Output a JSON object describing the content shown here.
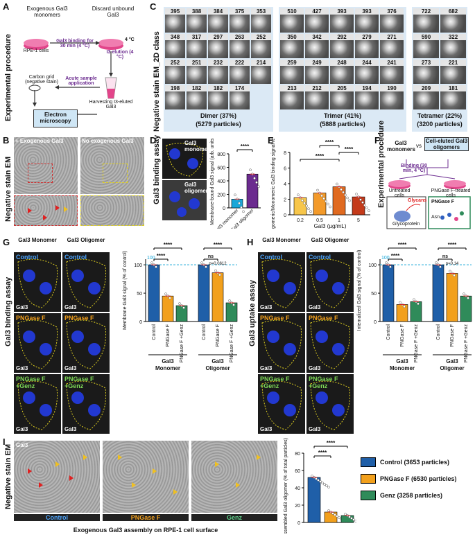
{
  "panelA": {
    "letter": "A",
    "side_label": "Experimental procedure",
    "exogenous": "Exogenous Gal3 monomers",
    "discard": "Discard unbound Gal3",
    "cells": "RPE-1 cells",
    "binding": "Gal3 binding for 30 min (4 °C)",
    "temp": "4 °C",
    "elution": "I3 elution (4 °C)",
    "carbon": "Carbon grid (negative stain)",
    "acute": "Acute sample application",
    "harvest": "Harvesting I3-eluted Gal3",
    "em_box": "Electron microscopy"
  },
  "panelB": {
    "letter": "B",
    "side_label": "Negative stain EM",
    "left_title": "+ Exogenous Gal3",
    "right_title": "No exogenous Gal3"
  },
  "panelC": {
    "letter": "C",
    "side_label": "Negative stain EM_2D class",
    "dimer_counts": [
      "395",
      "388",
      "384",
      "375",
      "353",
      "348",
      "317",
      "297",
      "263",
      "252",
      "252",
      "251",
      "232",
      "222",
      "214",
      "198",
      "182",
      "182",
      "174"
    ],
    "trimer_counts": [
      "510",
      "427",
      "393",
      "393",
      "376",
      "350",
      "342",
      "292",
      "279",
      "271",
      "259",
      "249",
      "248",
      "244",
      "241",
      "213",
      "212",
      "205",
      "194",
      "190"
    ],
    "tetramer_counts": [
      "722",
      "682",
      "590",
      "322",
      "273",
      "221",
      "209",
      "181"
    ],
    "dimer_label": "Dimer (37%)",
    "dimer_particles": "(5279 particles)",
    "trimer_label": "Trimer (41%)",
    "trimer_particles": "(5888 particles)",
    "tetramer_label": "Tetramer (22%)",
    "tetramer_particles": "(3200 particles)"
  },
  "panelD": {
    "letter": "D",
    "side_label": "Gal3 binding assay",
    "img_top": "Gal3 monomer",
    "img_bottom": "Gal3 oligomer",
    "sig": "****",
    "ylabel": "Membrane-bound Gal3 signal (arb. units)",
    "yticks": [
      "0",
      "200",
      "400",
      "600",
      "800"
    ],
    "cat1": "Gal3 monomer",
    "cat2": "Gal3 oligomer"
  },
  "panelE": {
    "letter": "E",
    "ylabel": "Oligomeric/Monomeric Gal3 binding signal ratio",
    "yticks": [
      "0",
      "2",
      "4",
      "6",
      "8"
    ],
    "xlabel": "Gal3 (µg/mL)",
    "xticks": [
      "0.2",
      "0.5",
      "1",
      "5"
    ],
    "sig": [
      "****",
      "****",
      "****"
    ]
  },
  "panelF": {
    "letter": "F",
    "side_label": "Experimental procedure",
    "monomers": "Gal3 monomers",
    "vs": "vs",
    "oligomers": "Cell-eluted Gal3 oligomers",
    "binding": "Binding (30 min, 4 °C)",
    "untreated": "Untreated cells",
    "pngase_cells": "PNGase F-treated cells",
    "glycans": "Glycans",
    "glycoprotein": "Glycoprotein",
    "pngase": "PNGase F",
    "asn": "Asn"
  },
  "panelG": {
    "letter": "G",
    "side_label": "Gal3 binding assay",
    "col1": "Gal3 Monomer",
    "col2": "Gal3 Oligomer",
    "row1": "Control",
    "row2": "PNGase F",
    "row3": "PNGase F +Genz",
    "tag": "Gal3",
    "ylabel": "Membrane Gal3 signal (% of control)",
    "yticks": [
      "0",
      "50",
      "100"
    ],
    "ref": "100",
    "bars": [
      "Control",
      "PNGase F",
      "PNGase F +Genz",
      "Control",
      "PNGase F",
      "PNGase F +Genz"
    ],
    "sig": [
      "****",
      "****",
      "****",
      "ns",
      "p=0.0612"
    ],
    "group1": "Gal3 Monomer",
    "group2": "Gal3 Oligomer"
  },
  "panelH": {
    "letter": "H",
    "side_label": "Gal3 uptake assay",
    "col1": "Gal3 Monomer",
    "col2": "Gal3 Oligomer",
    "row1": "Control",
    "row2": "PNGase F",
    "row3": "PNGase F +Genz",
    "tag": "Gal3",
    "ylabel": "Internalized Gal3 signal (% of control)",
    "yticks": [
      "0",
      "50",
      "100"
    ],
    "ref": "100",
    "bars": [
      "Control",
      "PNGase F",
      "PNGase F +Genz",
      "Control",
      "PNGase F",
      "PNGase F +Genz"
    ],
    "sig": [
      "****",
      "****",
      "****",
      "ns",
      "p=0.14"
    ],
    "group1": "Gal3 Monomer",
    "group2": "Gal3 Oligomer"
  },
  "panelI": {
    "letter": "I",
    "side_label": "Negative stain EM",
    "tag": "Gal3",
    "img1": "Control",
    "img2": "PNGase F",
    "img3": "Genz",
    "caption": "Exogenous Gal3 assembly on RPE-1 cell surface",
    "ylabel": "Assembled Gal3 oligomer (% of total particles)",
    "yticks": [
      "0",
      "20",
      "40",
      "60",
      "80"
    ],
    "sig": [
      "****",
      "****"
    ],
    "legend": [
      "Control (3653 particles)",
      "PNGase F (6530 particles)",
      "Genz (3258 particles)"
    ]
  },
  "colors": {
    "control": "#1f5fa8",
    "pngase": "#f2a01c",
    "genz": "#2f8b5a",
    "purple": "#6b2b8f",
    "cyan": "#1aa7d8",
    "sig_line": "#000000"
  },
  "chart_data": [
    {
      "type": "bar",
      "panel": "D",
      "categories": [
        "Gal3 monomer",
        "Gal3 oligomer"
      ],
      "values": [
        130,
        500
      ],
      "ylim": [
        0,
        800
      ],
      "ylabel": "Membrane-bound Gal3 signal (arb. units)"
    },
    {
      "type": "bar",
      "panel": "E",
      "categories": [
        "0.2",
        "0.5",
        "1",
        "5"
      ],
      "values": [
        2.2,
        2.8,
        3.6,
        2.3
      ],
      "ylim": [
        0,
        8
      ],
      "xlabel": "Gal3 (µg/mL)",
      "ylabel": "Oligomeric/Monomeric Gal3 binding signal ratio"
    },
    {
      "type": "bar",
      "panel": "G",
      "categories": [
        "Control",
        "PNGase F",
        "PNGase F +Genz",
        "Control",
        "PNGase F",
        "PNGase F +Genz"
      ],
      "values": [
        100,
        45,
        28,
        100,
        86,
        33
      ],
      "ylim": [
        0,
        110
      ],
      "ylabel": "Membrane Gal3 signal (% of control)"
    },
    {
      "type": "bar",
      "panel": "H",
      "categories": [
        "Control",
        "PNGase F",
        "PNGase F +Genz",
        "Control",
        "PNGase F",
        "PNGase F +Genz"
      ],
      "values": [
        100,
        30,
        35,
        100,
        85,
        45
      ],
      "ylim": [
        0,
        110
      ],
      "ylabel": "Internalized Gal3 signal (% of control)"
    },
    {
      "type": "bar",
      "panel": "I",
      "categories": [
        "Control",
        "PNGase F",
        "Genz"
      ],
      "values": [
        52,
        12,
        8
      ],
      "ylim": [
        0,
        80
      ],
      "ylabel": "Assembled Gal3 oligomer (% of total particles)"
    }
  ]
}
